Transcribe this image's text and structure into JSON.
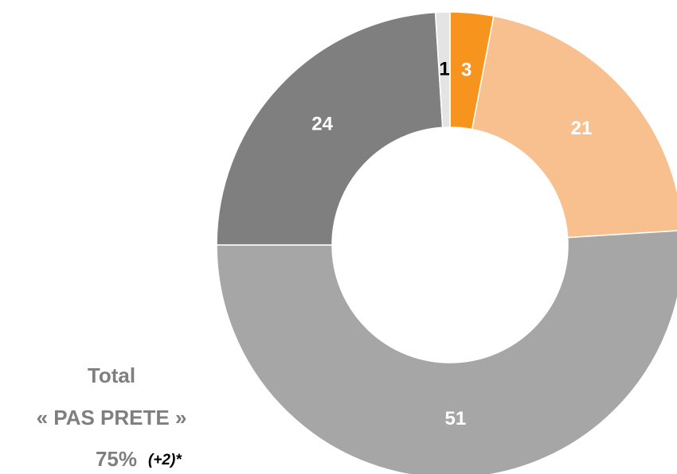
{
  "chart_data": {
    "type": "donut",
    "values": [
      3,
      21,
      51,
      24,
      1
    ],
    "colors": [
      "#f7941d",
      "#f9c08f",
      "#a6a6a6",
      "#7f7f7f",
      "#e4e4e4"
    ],
    "label_colors": [
      "#ffffff",
      "#ffffff",
      "#ffffff",
      "#ffffff",
      "#000000"
    ],
    "annotation": {
      "line1": "Total",
      "line2": "« PAS PRETE »",
      "value": "75%",
      "note": "(+2)*"
    }
  }
}
